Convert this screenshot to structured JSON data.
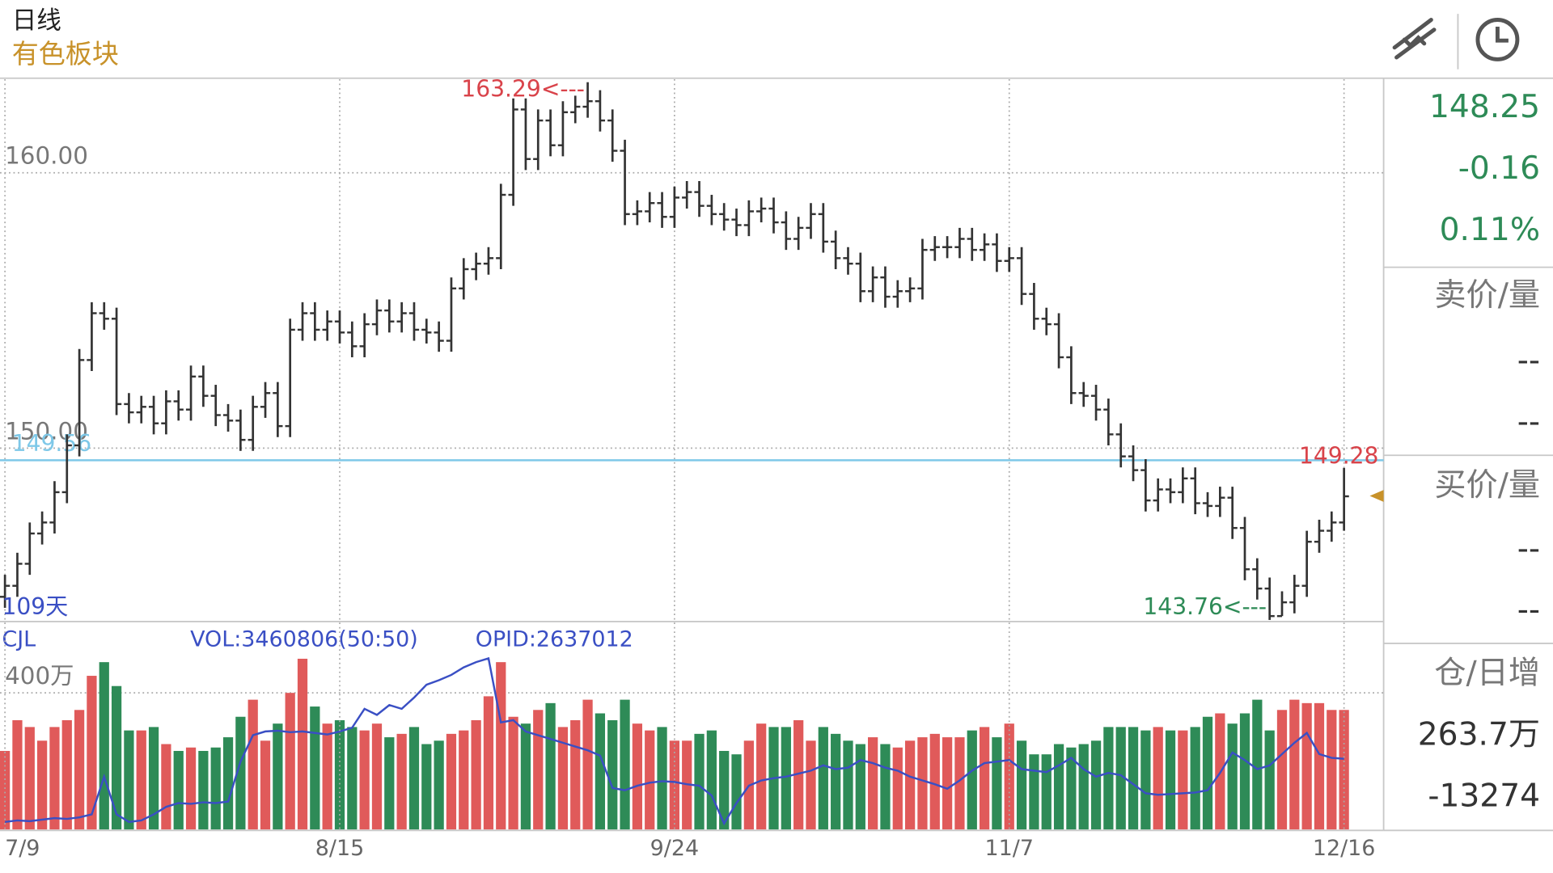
{
  "header": {
    "period": "日线",
    "name": "有色板块"
  },
  "quote_panel": {
    "last": "148.25",
    "change": "-0.16",
    "change_pct": "0.11%",
    "ask_title": "卖价/量",
    "ask_price": "--",
    "ask_volume": "--",
    "bid_title": "买价/量",
    "bid_price": "--",
    "bid_volume": "--",
    "oi_title": "仓/日增",
    "oi_value": "263.7万",
    "oi_change": "-13274"
  },
  "chart_data": [
    {
      "type": "ohlc",
      "categories": [
        "7/9",
        null,
        null,
        null,
        null,
        null,
        null,
        null,
        null,
        null,
        null,
        null,
        null,
        null,
        null,
        null,
        null,
        null,
        null,
        null,
        null,
        null,
        null,
        null,
        null,
        null,
        null,
        "8/15",
        null,
        null,
        null,
        null,
        null,
        null,
        null,
        null,
        null,
        null,
        null,
        null,
        null,
        null,
        null,
        null,
        null,
        null,
        null,
        null,
        null,
        null,
        null,
        null,
        null,
        null,
        "9/24",
        null,
        null,
        null,
        null,
        null,
        null,
        null,
        null,
        null,
        null,
        null,
        null,
        null,
        null,
        null,
        null,
        null,
        null,
        null,
        null,
        null,
        null,
        null,
        null,
        null,
        null,
        "11/7",
        null,
        null,
        null,
        null,
        null,
        null,
        null,
        null,
        null,
        null,
        null,
        null,
        null,
        null,
        null,
        null,
        null,
        null,
        null,
        null,
        null,
        null,
        null,
        null,
        null,
        null,
        "12/16"
      ],
      "open": [
        144.6,
        145.0,
        145.8,
        146.9,
        147.3,
        148.4,
        150.1,
        153.2,
        154.9,
        154.7,
        151.6,
        151.3,
        151.5,
        150.9,
        151.7,
        151.4,
        152.6,
        151.9,
        151.2,
        151.0,
        150.3,
        151.5,
        152.0,
        150.8,
        154.3,
        154.9,
        154.3,
        154.6,
        154.2,
        153.7,
        154.5,
        155.0,
        154.6,
        154.9,
        154.3,
        154.2,
        153.9,
        155.8,
        156.5,
        156.7,
        156.9,
        159.2,
        162.3,
        160.5,
        161.9,
        161.0,
        162.2,
        162.4,
        162.6,
        161.9,
        160.8,
        158.5,
        158.6,
        158.9,
        158.4,
        159.1,
        159.3,
        158.8,
        158.5,
        158.3,
        158.1,
        158.6,
        158.7,
        158.2,
        157.6,
        158.0,
        158.5,
        157.5,
        156.9,
        156.7,
        155.7,
        156.2,
        155.5,
        155.7,
        155.8,
        157.2,
        157.3,
        157.3,
        157.6,
        157.2,
        157.4,
        156.8,
        156.9,
        155.6,
        154.7,
        154.5,
        153.3,
        152.0,
        151.9,
        151.4,
        150.5,
        149.7,
        149.2,
        148.1,
        148.5,
        148.4,
        148.9,
        148.0,
        147.9,
        148.2,
        147.1,
        145.6,
        144.9,
        143.9,
        144.4,
        145.0,
        146.6,
        147.0,
        147.3
      ],
      "high": [
        145.4,
        146.2,
        147.3,
        147.7,
        148.8,
        150.5,
        153.6,
        155.3,
        155.3,
        155.1,
        152.0,
        151.9,
        151.9,
        152.1,
        152.1,
        153.0,
        153.0,
        152.3,
        151.6,
        151.4,
        151.9,
        152.4,
        152.4,
        154.7,
        155.3,
        155.3,
        155.0,
        155.0,
        154.6,
        154.9,
        155.4,
        155.4,
        155.3,
        155.3,
        154.7,
        154.6,
        156.2,
        156.9,
        157.1,
        157.3,
        159.6,
        162.7,
        162.7,
        162.3,
        162.3,
        162.6,
        162.8,
        163.29,
        163.0,
        162.3,
        161.2,
        159.0,
        159.3,
        159.3,
        159.5,
        159.7,
        159.7,
        159.2,
        158.9,
        158.7,
        159.0,
        159.1,
        159.1,
        158.6,
        158.4,
        158.9,
        158.9,
        157.9,
        157.3,
        157.1,
        156.6,
        156.6,
        156.1,
        156.2,
        157.6,
        157.7,
        157.7,
        158.0,
        158.0,
        157.8,
        157.8,
        157.3,
        157.3,
        156.0,
        155.1,
        154.9,
        153.7,
        152.4,
        152.3,
        151.8,
        150.9,
        150.1,
        149.6,
        148.9,
        148.9,
        149.3,
        149.3,
        148.4,
        148.6,
        148.6,
        147.5,
        146.0,
        145.3,
        144.8,
        145.4,
        147.0,
        147.4,
        147.7,
        149.28
      ],
      "low": [
        144.2,
        144.6,
        145.4,
        146.5,
        146.9,
        148.0,
        149.7,
        152.8,
        154.3,
        151.2,
        150.9,
        150.9,
        150.5,
        150.5,
        151.0,
        151.0,
        151.5,
        150.8,
        150.6,
        149.9,
        149.9,
        151.1,
        150.4,
        150.4,
        153.9,
        153.9,
        153.9,
        153.8,
        153.3,
        153.3,
        154.1,
        154.2,
        154.2,
        153.9,
        153.8,
        153.5,
        153.5,
        155.4,
        156.1,
        156.3,
        156.5,
        158.8,
        160.1,
        160.1,
        160.6,
        160.6,
        161.8,
        162.0,
        161.5,
        160.4,
        158.1,
        158.1,
        158.2,
        158.0,
        158.0,
        158.7,
        158.4,
        158.1,
        157.9,
        157.7,
        157.7,
        158.2,
        157.8,
        157.2,
        157.2,
        157.6,
        157.1,
        156.5,
        156.3,
        155.3,
        155.3,
        155.1,
        155.1,
        155.3,
        155.4,
        156.8,
        156.9,
        156.9,
        156.8,
        156.8,
        156.4,
        156.4,
        155.2,
        154.3,
        154.1,
        152.9,
        151.6,
        151.5,
        151.0,
        150.1,
        149.3,
        148.8,
        147.7,
        147.7,
        148.0,
        148.0,
        147.6,
        147.5,
        147.5,
        146.7,
        145.2,
        144.5,
        143.76,
        143.9,
        144.0,
        144.6,
        146.2,
        146.6,
        147.0
      ],
      "close": [
        145.0,
        145.8,
        146.9,
        147.3,
        148.4,
        150.1,
        153.2,
        154.9,
        154.7,
        151.6,
        151.3,
        151.5,
        150.9,
        151.7,
        151.4,
        152.6,
        151.9,
        151.2,
        151.0,
        150.3,
        151.5,
        152.0,
        150.8,
        154.3,
        154.9,
        154.3,
        154.6,
        154.2,
        153.7,
        154.5,
        155.0,
        154.6,
        154.9,
        154.3,
        154.2,
        153.9,
        155.8,
        156.5,
        156.7,
        156.9,
        159.2,
        162.3,
        160.5,
        161.9,
        161.0,
        162.2,
        162.4,
        162.6,
        161.9,
        160.8,
        158.5,
        158.6,
        158.9,
        158.4,
        159.1,
        159.3,
        158.8,
        158.5,
        158.3,
        158.1,
        158.6,
        158.7,
        158.2,
        157.6,
        158.0,
        158.5,
        157.5,
        156.9,
        156.7,
        155.7,
        156.2,
        155.5,
        155.7,
        155.8,
        157.2,
        157.3,
        157.3,
        157.6,
        157.2,
        157.4,
        156.8,
        156.9,
        155.6,
        154.7,
        154.5,
        153.3,
        152.0,
        151.9,
        151.4,
        150.5,
        149.7,
        149.2,
        148.1,
        148.5,
        148.4,
        148.9,
        148.0,
        147.9,
        148.2,
        147.1,
        145.6,
        144.9,
        143.9,
        144.4,
        145.0,
        146.6,
        147.0,
        147.3,
        148.25
      ],
      "color": "#333333",
      "ylim": [
        143.7,
        163.4
      ],
      "yticks": [
        {
          "value": 160,
          "label": "160.00"
        },
        {
          "value": 150,
          "label": "150.00"
        }
      ],
      "reference_line": {
        "value": 149.56,
        "label": "149.56",
        "color": "#7ec8e8"
      },
      "high_label": "163.29<---",
      "low_label": "143.76<---",
      "last_label": "149.28",
      "days_label": "109天",
      "grid": true
    },
    {
      "type": "bar",
      "title": "CJL",
      "series": [
        {
          "name": "VOL:3460806(50:50)",
          "up_color": "#e05a5a",
          "down_color": "#2e8b57",
          "values": [
            230,
            320,
            300,
            260,
            300,
            320,
            350,
            450,
            490,
            420,
            290,
            290,
            300,
            250,
            230,
            240,
            230,
            240,
            270,
            330,
            380,
            260,
            310,
            400,
            500,
            360,
            310,
            320,
            300,
            290,
            310,
            270,
            280,
            300,
            250,
            260,
            280,
            290,
            320,
            390,
            490,
            330,
            310,
            350,
            370,
            300,
            320,
            380,
            340,
            320,
            380,
            310,
            290,
            300,
            260,
            260,
            280,
            290,
            230,
            220,
            260,
            310,
            300,
            300,
            320,
            260,
            300,
            280,
            260,
            250,
            270,
            250,
            240,
            260,
            270,
            280,
            270,
            270,
            290,
            300,
            270,
            310,
            260,
            220,
            220,
            250,
            240,
            250,
            260,
            300,
            300,
            300,
            290,
            300,
            290,
            290,
            300,
            330,
            340,
            310,
            340,
            380,
            290,
            350,
            380,
            370,
            370,
            350,
            350
          ]
        },
        {
          "name": "OPID:2637012",
          "type": "line",
          "axis": "y2",
          "color": "#3a4fc4",
          "values": [
            180,
            182,
            181,
            183,
            185,
            184,
            186,
            190,
            240,
            190,
            180,
            182,
            190,
            200,
            205,
            204,
            206,
            205,
            207,
            260,
            295,
            300,
            301,
            299,
            300,
            298,
            296,
            300,
            305,
            330,
            322,
            335,
            330,
            345,
            362,
            368,
            375,
            385,
            392,
            397,
            312,
            315,
            300,
            295,
            290,
            285,
            280,
            275,
            268,
            225,
            222,
            228,
            232,
            234,
            233,
            230,
            228,
            215,
            178,
            205,
            228,
            235,
            238,
            240,
            244,
            248,
            255,
            250,
            252,
            262,
            258,
            252,
            248,
            240,
            235,
            230,
            224,
            235,
            248,
            258,
            260,
            262,
            250,
            248,
            246,
            255,
            265,
            250,
            240,
            245,
            242,
            230,
            218,
            216,
            217,
            218,
            219,
            222,
            245,
            272,
            262,
            250,
            255,
            270,
            285,
            298,
            270,
            265,
            263.7
          ]
        }
      ],
      "ylim": [
        0,
        574
      ],
      "yticks": [
        {
          "value": 400,
          "label": "400万"
        }
      ],
      "y2lim": [
        170,
        430
      ],
      "grid": true
    }
  ]
}
